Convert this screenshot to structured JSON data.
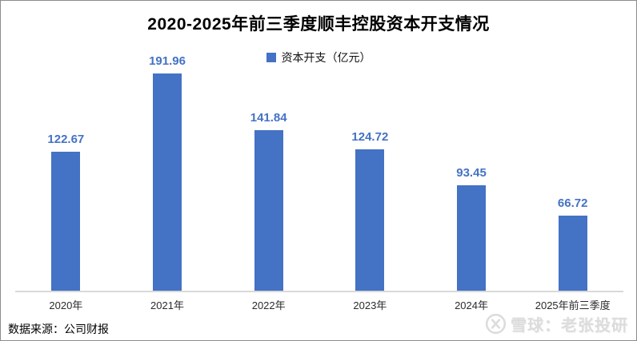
{
  "title": "2020-2025年前三季度顺丰控股资本开支情况",
  "legend": {
    "label": "资本开支（亿元）",
    "swatch_color": "#4472C4"
  },
  "chart_data": {
    "type": "bar",
    "title": "2020-2025年前三季度顺丰控股资本开支情况",
    "categories": [
      "2020年",
      "2021年",
      "2022年",
      "2023年",
      "2024年",
      "2025年前三季度"
    ],
    "series": [
      {
        "name": "资本开支",
        "unit": "亿元",
        "values": [
          122.67,
          191.96,
          141.84,
          124.72,
          93.45,
          66.72
        ]
      }
    ],
    "data_labels": true,
    "grid": false,
    "y_axis_visible": false,
    "legend_position": "top-center",
    "bar_color": "#4472C4",
    "data_label_color": "#4472C4",
    "axis_line_color": "#d9d9d9"
  },
  "footer": {
    "source": "数据来源：公司财报"
  },
  "watermark": {
    "logo": "xueqiu-logo",
    "text": "雪球：老张投研",
    "color": "#dcdcdc"
  }
}
